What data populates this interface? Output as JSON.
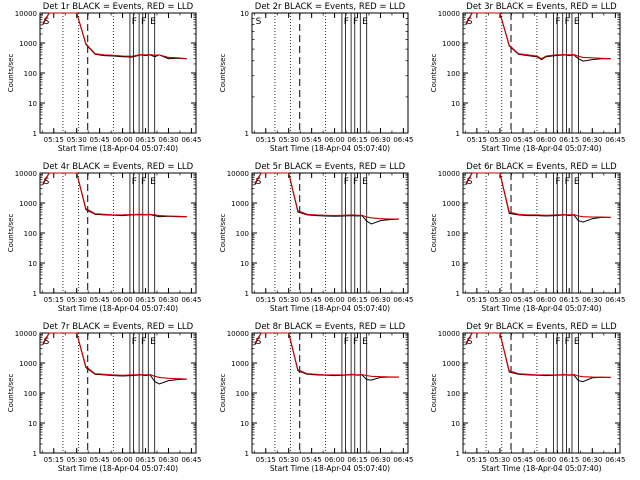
{
  "chart_data": [
    {
      "type": "line",
      "title": "Det 1r BLACK = Events, RED = LLD",
      "xlabel": "Start Time (18-Apr-04 05:07:40)",
      "ylabel": "Counts/sec",
      "y_scale": "log",
      "ylim": [
        1,
        10000
      ],
      "xlim": [
        5.1,
        6.8
      ],
      "x_ticks": [
        "05:15",
        "05:30",
        "05:45",
        "06:00",
        "06:15",
        "06:30",
        "06:45"
      ],
      "y_ticks": [
        "1",
        "10",
        "100",
        "1000",
        "10000"
      ],
      "markers": [
        "S",
        "F",
        "F",
        "E"
      ],
      "series": [
        {
          "color": "#000000",
          "x": [
            5.13,
            5.2,
            5.3,
            5.4,
            5.45,
            5.5,
            5.6,
            5.7,
            5.8,
            5.9,
            6.0,
            6.1,
            6.2,
            6.25,
            6.3,
            6.35,
            6.4,
            6.5,
            6.6,
            6.7
          ],
          "y": [
            4000,
            10000,
            10000,
            10000,
            10000,
            10000,
            900,
            420,
            380,
            370,
            350,
            340,
            400,
            380,
            400,
            350,
            400,
            300,
            310,
            300
          ]
        },
        {
          "color": "#cc0000",
          "x": [
            5.13,
            5.2,
            5.3,
            5.4,
            5.45,
            5.5,
            5.6,
            5.7,
            5.8,
            5.9,
            6.0,
            6.1,
            6.2,
            6.25,
            6.3,
            6.35,
            6.4,
            6.5,
            6.6,
            6.7
          ],
          "y": [
            4500,
            10000,
            10000,
            10000,
            10000,
            10000,
            950,
            440,
            400,
            390,
            370,
            360,
            410,
            400,
            410,
            390,
            400,
            330,
            320,
            300
          ]
        }
      ]
    },
    {
      "type": "line",
      "title": "Det 2r BLACK = Events, RED = LLD",
      "xlabel": "Start Time (18-Apr-04 05:07:40)",
      "ylabel": "Counts/sec",
      "y_scale": "log",
      "ylim": [
        1,
        10
      ],
      "xlim": [
        5.1,
        6.8
      ],
      "x_ticks": [
        "05:15",
        "05:30",
        "05:45",
        "06:00",
        "06:15",
        "06:30",
        "06:45"
      ],
      "y_ticks": [
        "1",
        "10"
      ],
      "markers": [
        "S",
        "F",
        "F",
        "E"
      ],
      "series": []
    },
    {
      "type": "line",
      "title": "Det 3r BLACK = Events, RED = LLD",
      "xlabel": "Start Time (18-Apr-04 05:07:40)",
      "ylabel": "Counts/sec",
      "y_scale": "log",
      "ylim": [
        1,
        10000
      ],
      "xlim": [
        5.1,
        6.8
      ],
      "x_ticks": [
        "05:15",
        "05:30",
        "05:45",
        "06:00",
        "06:15",
        "06:30",
        "06:45"
      ],
      "y_ticks": [
        "1",
        "10",
        "100",
        "1000",
        "10000"
      ],
      "markers": [
        "S",
        "F",
        "F",
        "E"
      ],
      "series": [
        {
          "color": "#000000",
          "x": [
            5.13,
            5.2,
            5.3,
            5.4,
            5.45,
            5.5,
            5.6,
            5.7,
            5.8,
            5.9,
            5.95,
            6.0,
            6.1,
            6.2,
            6.25,
            6.3,
            6.35,
            6.4,
            6.5,
            6.6,
            6.7
          ],
          "y": [
            4000,
            10000,
            10000,
            10000,
            10000,
            10000,
            800,
            420,
            380,
            350,
            280,
            350,
            380,
            400,
            380,
            400,
            300,
            250,
            280,
            300,
            300
          ]
        },
        {
          "color": "#cc0000",
          "x": [
            5.13,
            5.2,
            5.3,
            5.4,
            5.45,
            5.5,
            5.6,
            5.7,
            5.8,
            5.9,
            5.95,
            6.0,
            6.1,
            6.2,
            6.25,
            6.3,
            6.35,
            6.4,
            6.5,
            6.6,
            6.7
          ],
          "y": [
            4500,
            10000,
            10000,
            10000,
            10000,
            10000,
            850,
            440,
            400,
            370,
            300,
            370,
            400,
            410,
            400,
            410,
            360,
            330,
            320,
            310,
            300
          ]
        }
      ]
    },
    {
      "type": "line",
      "title": "Det 4r BLACK = Events, RED = LLD",
      "xlabel": "Start Time (18-Apr-04 05:07:40)",
      "ylabel": "Counts/sec",
      "y_scale": "log",
      "ylim": [
        1,
        10000
      ],
      "xlim": [
        5.1,
        6.8
      ],
      "x_ticks": [
        "05:15",
        "05:30",
        "05:45",
        "06:00",
        "06:15",
        "06:30",
        "06:45"
      ],
      "y_ticks": [
        "1",
        "10",
        "100",
        "1000",
        "10000"
      ],
      "markers": [
        "S",
        "F",
        "F",
        "E"
      ],
      "series": [
        {
          "color": "#000000",
          "x": [
            5.13,
            5.2,
            5.3,
            5.4,
            5.45,
            5.5,
            5.6,
            5.7,
            5.8,
            5.9,
            6.0,
            6.1,
            6.2,
            6.25,
            6.3,
            6.35,
            6.4,
            6.5,
            6.6,
            6.7
          ],
          "y": [
            4000,
            10000,
            10000,
            10000,
            10000,
            10000,
            600,
            420,
            400,
            390,
            380,
            400,
            410,
            400,
            410,
            380,
            350,
            360,
            350,
            350
          ]
        },
        {
          "color": "#cc0000",
          "x": [
            5.13,
            5.2,
            5.3,
            5.4,
            5.45,
            5.5,
            5.6,
            5.7,
            5.8,
            5.9,
            6.0,
            6.1,
            6.2,
            6.25,
            6.3,
            6.35,
            6.4,
            6.5,
            6.6,
            6.7
          ],
          "y": [
            4500,
            10000,
            10000,
            10000,
            10000,
            10000,
            650,
            440,
            420,
            400,
            400,
            410,
            420,
            410,
            420,
            400,
            380,
            370,
            360,
            350
          ]
        }
      ]
    },
    {
      "type": "line",
      "title": "Det 5r BLACK = Events, RED = LLD",
      "xlabel": "Start Time (18-Apr-04 05:07:40)",
      "ylabel": "Counts/sec",
      "y_scale": "log",
      "ylim": [
        1,
        10000
      ],
      "xlim": [
        5.1,
        6.8
      ],
      "x_ticks": [
        "05:15",
        "05:30",
        "05:45",
        "06:00",
        "06:15",
        "06:30",
        "06:45"
      ],
      "y_ticks": [
        "1",
        "10",
        "100",
        "1000",
        "10000"
      ],
      "markers": [
        "S",
        "F",
        "F",
        "E"
      ],
      "series": [
        {
          "color": "#000000",
          "x": [
            5.13,
            5.2,
            5.3,
            5.4,
            5.45,
            5.5,
            5.6,
            5.7,
            5.8,
            5.9,
            6.0,
            6.1,
            6.2,
            6.25,
            6.3,
            6.35,
            6.4,
            6.5,
            6.6,
            6.7
          ],
          "y": [
            4000,
            10000,
            10000,
            10000,
            10000,
            10000,
            500,
            400,
            380,
            370,
            360,
            370,
            380,
            370,
            380,
            250,
            200,
            260,
            280,
            290
          ]
        },
        {
          "color": "#cc0000",
          "x": [
            5.13,
            5.2,
            5.3,
            5.4,
            5.45,
            5.5,
            5.6,
            5.7,
            5.8,
            5.9,
            6.0,
            6.1,
            6.2,
            6.25,
            6.3,
            6.35,
            6.4,
            6.5,
            6.6,
            6.7
          ],
          "y": [
            4500,
            10000,
            10000,
            10000,
            10000,
            10000,
            550,
            420,
            400,
            390,
            380,
            390,
            400,
            390,
            390,
            340,
            320,
            300,
            290,
            290
          ]
        }
      ]
    },
    {
      "type": "line",
      "title": "Det 6r BLACK = Events, RED = LLD",
      "xlabel": "Start Time (18-Apr-04 05:07:40)",
      "ylabel": "Counts/sec",
      "y_scale": "log",
      "ylim": [
        1,
        10000
      ],
      "xlim": [
        5.1,
        6.8
      ],
      "x_ticks": [
        "05:15",
        "05:30",
        "05:45",
        "06:00",
        "06:15",
        "06:30",
        "06:45"
      ],
      "y_ticks": [
        "1",
        "10",
        "100",
        "1000",
        "10000"
      ],
      "markers": [
        "S",
        "F",
        "F",
        "E"
      ],
      "series": [
        {
          "color": "#000000",
          "x": [
            5.13,
            5.2,
            5.3,
            5.4,
            5.45,
            5.5,
            5.6,
            5.7,
            5.8,
            5.9,
            6.0,
            6.1,
            6.2,
            6.25,
            6.3,
            6.35,
            6.4,
            6.5,
            6.6,
            6.7
          ],
          "y": [
            4000,
            10000,
            10000,
            10000,
            10000,
            10000,
            450,
            400,
            380,
            380,
            370,
            380,
            400,
            380,
            400,
            260,
            230,
            300,
            330,
            330
          ]
        },
        {
          "color": "#cc0000",
          "x": [
            5.13,
            5.2,
            5.3,
            5.4,
            5.45,
            5.5,
            5.6,
            5.7,
            5.8,
            5.9,
            6.0,
            6.1,
            6.2,
            6.25,
            6.3,
            6.35,
            6.4,
            6.5,
            6.6,
            6.7
          ],
          "y": [
            4500,
            10000,
            10000,
            10000,
            10000,
            10000,
            500,
            420,
            400,
            400,
            390,
            400,
            410,
            400,
            410,
            370,
            350,
            340,
            340,
            330
          ]
        }
      ]
    },
    {
      "type": "line",
      "title": "Det 7r BLACK = Events, RED = LLD",
      "xlabel": "Start Time (18-Apr-04 05:07:40)",
      "ylabel": "Counts/sec",
      "y_scale": "log",
      "ylim": [
        1,
        10000
      ],
      "xlim": [
        5.1,
        6.8
      ],
      "x_ticks": [
        "05:15",
        "05:30",
        "05:45",
        "06:00",
        "06:15",
        "06:30",
        "06:45"
      ],
      "y_ticks": [
        "1",
        "10",
        "100",
        "1000",
        "10000"
      ],
      "markers": [
        "S",
        "F",
        "F",
        "E"
      ],
      "series": [
        {
          "color": "#000000",
          "x": [
            5.13,
            5.2,
            5.3,
            5.4,
            5.45,
            5.5,
            5.6,
            5.7,
            5.8,
            5.9,
            6.0,
            6.1,
            6.2,
            6.25,
            6.3,
            6.35,
            6.4,
            6.5,
            6.6,
            6.7
          ],
          "y": [
            4000,
            10000,
            10000,
            10000,
            10000,
            10000,
            700,
            420,
            400,
            380,
            370,
            380,
            400,
            380,
            400,
            240,
            200,
            260,
            280,
            290
          ]
        },
        {
          "color": "#cc0000",
          "x": [
            5.13,
            5.2,
            5.3,
            5.4,
            5.45,
            5.5,
            5.6,
            5.7,
            5.8,
            5.9,
            6.0,
            6.1,
            6.2,
            6.25,
            6.3,
            6.35,
            6.4,
            6.5,
            6.6,
            6.7
          ],
          "y": [
            4500,
            10000,
            10000,
            10000,
            10000,
            10000,
            750,
            440,
            420,
            400,
            390,
            400,
            410,
            400,
            410,
            360,
            330,
            310,
            300,
            290
          ]
        }
      ]
    },
    {
      "type": "line",
      "title": "Det 8r BLACK = Events, RED = LLD",
      "xlabel": "Start Time (18-Apr-04 05:07:40)",
      "ylabel": "Counts/sec",
      "y_scale": "log",
      "ylim": [
        1,
        10000
      ],
      "xlim": [
        5.1,
        6.8
      ],
      "x_ticks": [
        "05:15",
        "05:30",
        "05:45",
        "06:00",
        "06:15",
        "06:30",
        "06:45"
      ],
      "y_ticks": [
        "1",
        "10",
        "100",
        "1000",
        "10000"
      ],
      "markers": [
        "S",
        "F",
        "F",
        "E"
      ],
      "series": [
        {
          "color": "#000000",
          "x": [
            5.13,
            5.2,
            5.3,
            5.4,
            5.45,
            5.5,
            5.6,
            5.7,
            5.8,
            5.9,
            6.0,
            6.1,
            6.2,
            6.25,
            6.3,
            6.35,
            6.4,
            6.5,
            6.6,
            6.7
          ],
          "y": [
            4000,
            10000,
            10000,
            10000,
            10000,
            10000,
            550,
            420,
            400,
            390,
            380,
            390,
            410,
            390,
            400,
            280,
            270,
            330,
            340,
            340
          ]
        },
        {
          "color": "#cc0000",
          "x": [
            5.13,
            5.2,
            5.3,
            5.4,
            5.45,
            5.5,
            5.6,
            5.7,
            5.8,
            5.9,
            6.0,
            6.1,
            6.2,
            6.25,
            6.3,
            6.35,
            6.4,
            6.5,
            6.6,
            6.7
          ],
          "y": [
            4500,
            10000,
            10000,
            10000,
            10000,
            10000,
            600,
            440,
            420,
            400,
            400,
            400,
            420,
            400,
            410,
            380,
            360,
            350,
            345,
            340
          ]
        }
      ]
    },
    {
      "type": "line",
      "title": "Det 9r BLACK = Events, RED = LLD",
      "xlabel": "Start Time (18-Apr-04 05:07:40)",
      "ylabel": "Counts/sec",
      "y_scale": "log",
      "ylim": [
        1,
        10000
      ],
      "xlim": [
        5.1,
        6.8
      ],
      "x_ticks": [
        "05:15",
        "05:30",
        "05:45",
        "06:00",
        "06:15",
        "06:30",
        "06:45"
      ],
      "y_ticks": [
        "1",
        "10",
        "100",
        "1000",
        "10000"
      ],
      "markers": [
        "S",
        "F",
        "F",
        "E"
      ],
      "series": [
        {
          "color": "#000000",
          "x": [
            5.13,
            5.2,
            5.3,
            5.4,
            5.45,
            5.5,
            5.6,
            5.7,
            5.8,
            5.9,
            6.0,
            6.1,
            6.2,
            6.25,
            6.3,
            6.35,
            6.4,
            6.5,
            6.6,
            6.7
          ],
          "y": [
            4000,
            10000,
            10000,
            10000,
            10000,
            10000,
            500,
            420,
            400,
            390,
            380,
            390,
            400,
            390,
            400,
            260,
            240,
            320,
            330,
            330
          ]
        },
        {
          "color": "#cc0000",
          "x": [
            5.13,
            5.2,
            5.3,
            5.4,
            5.45,
            5.5,
            5.6,
            5.7,
            5.8,
            5.9,
            6.0,
            6.1,
            6.2,
            6.25,
            6.3,
            6.35,
            6.4,
            6.5,
            6.6,
            6.7
          ],
          "y": [
            4500,
            10000,
            10000,
            10000,
            10000,
            10000,
            550,
            440,
            420,
            400,
            400,
            400,
            410,
            400,
            410,
            370,
            350,
            340,
            335,
            330
          ]
        }
      ]
    }
  ]
}
